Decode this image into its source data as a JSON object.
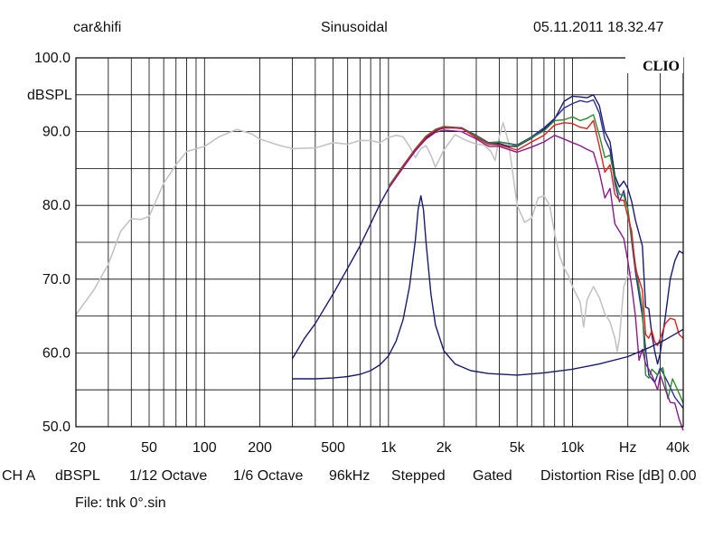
{
  "header": {
    "left": "car&hifi",
    "center": "Sinusoidal",
    "right": "05.11.2011 18.32.47"
  },
  "brand": "CLIO",
  "status": {
    "channel": "CH A",
    "unit": "dBSPL",
    "smoothing": "1/12 Octave",
    "resolution": "1/6 Octave",
    "rate": "96kHz",
    "mode": "Stepped",
    "gating": "Gated",
    "distortion": "Distortion Rise [dB] 0.00"
  },
  "file_label": "File: tnk 0°.sin",
  "colors": {
    "grid": "#000000",
    "gray": "#c4c4c4",
    "navy": "#1a1a6e",
    "blue": "#2c2c9a",
    "green": "#2e8a2e",
    "red": "#e02020",
    "purple": "#8a1a8a"
  },
  "chart_data": {
    "type": "line",
    "xscale": "log",
    "xlim": [
      20,
      40000
    ],
    "ylim": [
      50,
      100
    ],
    "ylabel": "dBSPL",
    "grid": true,
    "y_ticks": [
      "100.0",
      "90.0",
      "80.0",
      "70.0",
      "60.0",
      "50.0"
    ],
    "y_tick_values": [
      100,
      90,
      80,
      70,
      60,
      50
    ],
    "x_tick_labels": [
      "20",
      "50",
      "100",
      "200",
      "500",
      "1k",
      "2k",
      "5k",
      "10k",
      "Hz",
      "40k"
    ],
    "x_tick_values": [
      20,
      50,
      100,
      200,
      500,
      1000,
      2000,
      5000,
      10000,
      20000,
      40000
    ],
    "series": [
      {
        "color_key": "gray",
        "points": [
          [
            20,
            65.2
          ],
          [
            25,
            68.5
          ],
          [
            30,
            72
          ],
          [
            35,
            76.5
          ],
          [
            40,
            78.2
          ],
          [
            45,
            78.1
          ],
          [
            50,
            78.5
          ],
          [
            60,
            83
          ],
          [
            70,
            85.5
          ],
          [
            80,
            87.3
          ],
          [
            100,
            88
          ],
          [
            120,
            89.3
          ],
          [
            150,
            90.3
          ],
          [
            180,
            89.7
          ],
          [
            200,
            89
          ],
          [
            250,
            88.2
          ],
          [
            300,
            87.7
          ],
          [
            400,
            87.8
          ],
          [
            500,
            88.5
          ],
          [
            600,
            88.3
          ],
          [
            700,
            88.8
          ],
          [
            800,
            88.8
          ],
          [
            900,
            88.5
          ],
          [
            1000,
            89.2
          ],
          [
            1100,
            89.5
          ],
          [
            1200,
            89.3
          ],
          [
            1300,
            88
          ],
          [
            1400,
            86.5
          ],
          [
            1500,
            87.7
          ],
          [
            1600,
            88.1
          ],
          [
            1700,
            86.8
          ],
          [
            1800,
            85.2
          ],
          [
            2000,
            87.5
          ],
          [
            2300,
            89.6
          ],
          [
            2600,
            88.9
          ],
          [
            3000,
            88.3
          ],
          [
            3300,
            88.2
          ],
          [
            3600,
            87.3
          ],
          [
            3800,
            86.1
          ],
          [
            4000,
            89.3
          ],
          [
            4200,
            91.2
          ],
          [
            4500,
            88.5
          ],
          [
            5000,
            80
          ],
          [
            5500,
            77.7
          ],
          [
            6000,
            78.3
          ],
          [
            6500,
            81
          ],
          [
            7000,
            81.3
          ],
          [
            7500,
            80.1
          ],
          [
            8000,
            76.2
          ],
          [
            8500,
            73.2
          ],
          [
            9000,
            71.5
          ],
          [
            9500,
            70.5
          ],
          [
            10000,
            69
          ],
          [
            11000,
            66.9
          ],
          [
            11500,
            63.5
          ],
          [
            12000,
            67.2
          ],
          [
            13000,
            69
          ],
          [
            14000,
            67.5
          ],
          [
            15000,
            65.3
          ],
          [
            16000,
            64.2
          ],
          [
            17000,
            62
          ],
          [
            17500,
            60.2
          ],
          [
            18000,
            62
          ],
          [
            19000,
            69
          ],
          [
            20000,
            70.5
          ],
          [
            21000,
            71
          ]
        ]
      },
      {
        "color_key": "navy",
        "points": [
          [
            300,
            59.2
          ],
          [
            350,
            62
          ],
          [
            400,
            64
          ],
          [
            500,
            68
          ],
          [
            600,
            71.5
          ],
          [
            700,
            74.5
          ],
          [
            800,
            77.5
          ],
          [
            900,
            80.2
          ],
          [
            1000,
            82.3
          ],
          [
            1200,
            85.2
          ],
          [
            1400,
            87.4
          ],
          [
            1600,
            89.1
          ],
          [
            1800,
            90.1
          ],
          [
            2000,
            90.5
          ],
          [
            2500,
            90.5
          ],
          [
            3000,
            89.2
          ],
          [
            3500,
            88.3
          ],
          [
            4000,
            88.4
          ],
          [
            4500,
            88
          ],
          [
            5000,
            88
          ],
          [
            6000,
            89.1
          ],
          [
            7000,
            90.3
          ],
          [
            8000,
            91.7
          ],
          [
            9000,
            94.1
          ],
          [
            10000,
            94.8
          ],
          [
            11000,
            94.7
          ],
          [
            12000,
            94.6
          ],
          [
            13000,
            95
          ],
          [
            14000,
            93.5
          ],
          [
            15000,
            90
          ],
          [
            16000,
            88.6
          ],
          [
            17000,
            84
          ],
          [
            18000,
            82.5
          ],
          [
            19000,
            83.3
          ],
          [
            20000,
            82.3
          ],
          [
            21000,
            80.5
          ],
          [
            22000,
            78
          ],
          [
            24000,
            74.5
          ],
          [
            25000,
            66.2
          ],
          [
            26000,
            66
          ],
          [
            27000,
            62.5
          ],
          [
            28000,
            60.2
          ],
          [
            29000,
            58.5
          ],
          [
            30000,
            60
          ],
          [
            32000,
            65
          ],
          [
            34000,
            70
          ],
          [
            36000,
            72.5
          ],
          [
            38000,
            73.8
          ],
          [
            40000,
            73.5
          ]
        ]
      },
      {
        "color_key": "blue",
        "points": [
          [
            1000,
            82.5
          ],
          [
            1200,
            85.4
          ],
          [
            1400,
            87.6
          ],
          [
            1600,
            89.3
          ],
          [
            1800,
            90.3
          ],
          [
            2000,
            90.7
          ],
          [
            2500,
            90.5
          ],
          [
            3000,
            89.5
          ],
          [
            3500,
            88.5
          ],
          [
            4000,
            88.6
          ],
          [
            5000,
            88.2
          ],
          [
            6000,
            89.3
          ],
          [
            7000,
            90.5
          ],
          [
            8000,
            91.8
          ],
          [
            9000,
            93.2
          ],
          [
            10000,
            93.8
          ],
          [
            11000,
            94.2
          ],
          [
            12000,
            94
          ],
          [
            13000,
            94.3
          ],
          [
            14000,
            92.5
          ],
          [
            15000,
            89
          ],
          [
            16000,
            87.5
          ],
          [
            17000,
            83
          ],
          [
            18000,
            80.5
          ],
          [
            19000,
            82
          ],
          [
            20000,
            79.5
          ],
          [
            22000,
            71
          ],
          [
            24000,
            65
          ],
          [
            25000,
            60.5
          ],
          [
            26000,
            57
          ],
          [
            28000,
            56
          ],
          [
            30000,
            58
          ],
          [
            33000,
            56
          ],
          [
            36000,
            54
          ],
          [
            40000,
            52.5
          ]
        ]
      },
      {
        "color_key": "green",
        "points": [
          [
            1000,
            82.6
          ],
          [
            1200,
            85.4
          ],
          [
            1400,
            87.7
          ],
          [
            1600,
            89.4
          ],
          [
            1800,
            90.3
          ],
          [
            2000,
            90.7
          ],
          [
            2500,
            90.4
          ],
          [
            3000,
            89.4
          ],
          [
            3500,
            88.4
          ],
          [
            4000,
            88.6
          ],
          [
            5000,
            88.1
          ],
          [
            6000,
            89.2
          ],
          [
            7000,
            90.1
          ],
          [
            8000,
            91.5
          ],
          [
            9000,
            91.6
          ],
          [
            10000,
            92
          ],
          [
            11000,
            91.5
          ],
          [
            12000,
            91.8
          ],
          [
            13000,
            92.3
          ],
          [
            14000,
            89.5
          ],
          [
            15000,
            86.5
          ],
          [
            16000,
            86.8
          ],
          [
            17000,
            83.5
          ],
          [
            18000,
            81.5
          ],
          [
            19000,
            81.4
          ],
          [
            20000,
            79.5
          ],
          [
            22000,
            72
          ],
          [
            24000,
            66
          ],
          [
            25000,
            57
          ],
          [
            26000,
            56.6
          ],
          [
            27000,
            57.8
          ],
          [
            29000,
            57
          ],
          [
            31000,
            58
          ],
          [
            33000,
            53.8
          ],
          [
            35000,
            56.5
          ],
          [
            38000,
            54.5
          ],
          [
            40000,
            53.2
          ]
        ]
      },
      {
        "color_key": "red",
        "points": [
          [
            1000,
            82.4
          ],
          [
            1200,
            85.3
          ],
          [
            1400,
            87.6
          ],
          [
            1600,
            89.3
          ],
          [
            1800,
            90.2
          ],
          [
            2000,
            90.6
          ],
          [
            2500,
            90.4
          ],
          [
            3000,
            89.2
          ],
          [
            3500,
            88.3
          ],
          [
            4000,
            88.2
          ],
          [
            5000,
            87.5
          ],
          [
            6000,
            88.6
          ],
          [
            7000,
            89.5
          ],
          [
            8000,
            90.9
          ],
          [
            9000,
            91.2
          ],
          [
            10000,
            91.1
          ],
          [
            11000,
            90.6
          ],
          [
            12000,
            90.4
          ],
          [
            13000,
            91.5
          ],
          [
            14000,
            88
          ],
          [
            15000,
            84.5
          ],
          [
            16000,
            85.5
          ],
          [
            17000,
            81.5
          ],
          [
            18000,
            80.7
          ],
          [
            19000,
            80.7
          ],
          [
            20000,
            78.5
          ],
          [
            21000,
            76.5
          ],
          [
            22000,
            71.5
          ],
          [
            24000,
            68.5
          ],
          [
            25000,
            62.5
          ],
          [
            26000,
            62
          ],
          [
            27000,
            63
          ],
          [
            28000,
            61.5
          ],
          [
            29000,
            61
          ],
          [
            30000,
            62
          ],
          [
            32000,
            64
          ],
          [
            34000,
            64.7
          ],
          [
            36000,
            64.5
          ],
          [
            38000,
            62.5
          ],
          [
            40000,
            62
          ]
        ]
      },
      {
        "color_key": "purple",
        "points": [
          [
            1000,
            82.3
          ],
          [
            1200,
            85.1
          ],
          [
            1400,
            87.4
          ],
          [
            1600,
            89
          ],
          [
            1800,
            89.9
          ],
          [
            2000,
            90.2
          ],
          [
            2500,
            90
          ],
          [
            3000,
            89
          ],
          [
            3500,
            88
          ],
          [
            4000,
            88
          ],
          [
            5000,
            87.2
          ],
          [
            6000,
            87.9
          ],
          [
            7000,
            88.6
          ],
          [
            8000,
            89.5
          ],
          [
            9000,
            89
          ],
          [
            10000,
            88.5
          ],
          [
            11000,
            88.1
          ],
          [
            12000,
            87.6
          ],
          [
            13000,
            87.2
          ],
          [
            14000,
            84.5
          ],
          [
            15000,
            81
          ],
          [
            16000,
            82.3
          ],
          [
            17000,
            77.5
          ],
          [
            18000,
            76.5
          ],
          [
            19000,
            75.5
          ],
          [
            20000,
            72.5
          ],
          [
            21000,
            69
          ],
          [
            22000,
            65
          ],
          [
            23000,
            59
          ],
          [
            24000,
            60.5
          ],
          [
            25000,
            58.5
          ],
          [
            26000,
            57.8
          ],
          [
            27000,
            57
          ],
          [
            28000,
            56
          ],
          [
            29000,
            55
          ],
          [
            30000,
            57
          ],
          [
            32000,
            55
          ],
          [
            34000,
            53.3
          ],
          [
            36000,
            53.2
          ],
          [
            38000,
            51
          ],
          [
            40000,
            49.5
          ]
        ]
      },
      {
        "color_key": "navy",
        "points": [
          [
            300,
            56.5
          ],
          [
            400,
            56.5
          ],
          [
            500,
            56.6
          ],
          [
            600,
            56.8
          ],
          [
            700,
            57.1
          ],
          [
            800,
            57.6
          ],
          [
            900,
            58.4
          ],
          [
            1000,
            59.6
          ],
          [
            1100,
            61.6
          ],
          [
            1200,
            64.5
          ],
          [
            1300,
            69
          ],
          [
            1400,
            75.3
          ],
          [
            1450,
            79.5
          ],
          [
            1500,
            81.3
          ],
          [
            1550,
            79.4
          ],
          [
            1600,
            75
          ],
          [
            1700,
            68
          ],
          [
            1800,
            63.8
          ],
          [
            2000,
            60.3
          ],
          [
            2300,
            58.5
          ],
          [
            2800,
            57.6
          ],
          [
            3500,
            57.2
          ],
          [
            5000,
            57
          ],
          [
            7000,
            57.3
          ],
          [
            10000,
            57.8
          ],
          [
            14000,
            58.5
          ],
          [
            20000,
            59.5
          ],
          [
            26000,
            60.7
          ],
          [
            32000,
            61.8
          ],
          [
            40000,
            63.2
          ]
        ]
      }
    ]
  }
}
